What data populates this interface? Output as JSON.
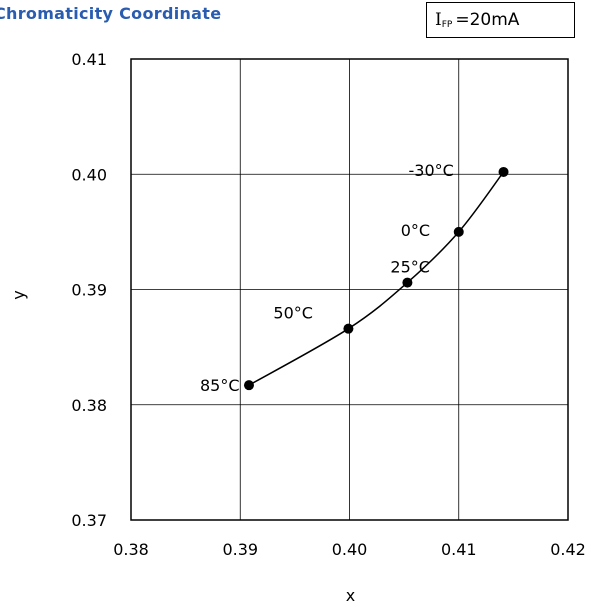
{
  "header": {
    "title": "Chromaticity Coordinate",
    "condition_symbol": "I",
    "condition_subscript": "FP",
    "condition_value": "=20mA"
  },
  "chart_data": {
    "type": "line",
    "title": "Chromaticity Coordinate",
    "xlabel": "x",
    "ylabel": "y",
    "xlim": [
      0.38,
      0.42
    ],
    "ylim": [
      0.37,
      0.41
    ],
    "x_ticks": [
      "0.38",
      "0.39",
      "0.40",
      "0.41",
      "0.42"
    ],
    "y_ticks": [
      "0.41",
      "0.40",
      "0.39",
      "0.38",
      "0.37"
    ],
    "grid": true,
    "series": [
      {
        "points": [
          {
            "x": 0.3908,
            "y": 0.3817,
            "label": "85°C"
          },
          {
            "x": 0.3999,
            "y": 0.3866,
            "label": "50°C"
          },
          {
            "x": 0.4053,
            "y": 0.3906,
            "label": "25°C"
          },
          {
            "x": 0.41,
            "y": 0.395,
            "label": "0°C"
          },
          {
            "x": 0.4141,
            "y": 0.4002,
            "label": "-30°C"
          }
        ]
      }
    ]
  }
}
